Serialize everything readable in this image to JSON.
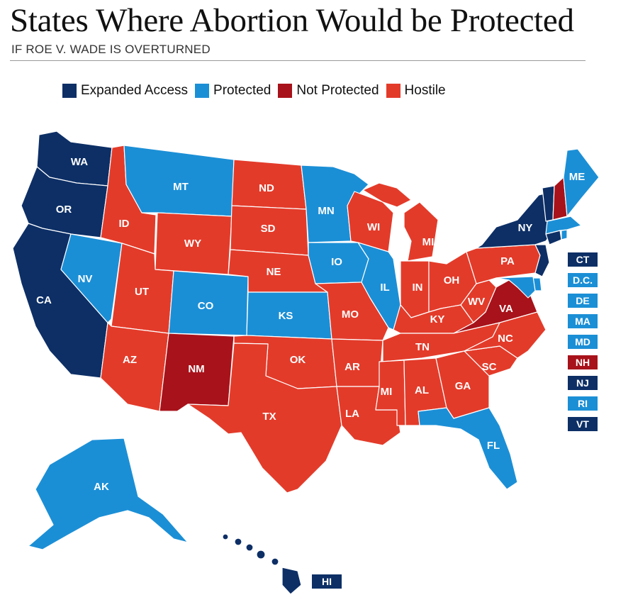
{
  "title": "States Where Abortion Would be Protected",
  "subtitle": "IF ROE V. WADE IS OVERTURNED",
  "colors": {
    "expanded": "#0d2f66",
    "protected": "#1b8fd6",
    "not_protected": "#a8121a",
    "hostile": "#e33b2a"
  },
  "legend": [
    {
      "label": "Expanded Access",
      "category": "expanded"
    },
    {
      "label": "Protected",
      "category": "protected"
    },
    {
      "label": "Not Protected",
      "category": "not_protected"
    },
    {
      "label": "Hostile",
      "category": "hostile"
    }
  ],
  "states": {
    "WA": "WA",
    "OR": "OR",
    "CA": "CA",
    "NV": "NV",
    "ID": "ID",
    "MT": "MT",
    "WY": "WY",
    "UT": "UT",
    "AZ": "AZ",
    "CO": "CO",
    "NM": "NM",
    "ND": "ND",
    "SD": "SD",
    "NE": "NE",
    "KS": "KS",
    "OK": "OK",
    "TX": "TX",
    "MN": "MN",
    "IO": "IO",
    "MO": "MO",
    "AR": "AR",
    "LA": "LA",
    "WI": "WI",
    "IL": "IL",
    "MI_N": "MI",
    "MI_S": "MI",
    "IN": "IN",
    "OH": "OH",
    "KY": "KY",
    "TN": "TN",
    "AL": "AL",
    "GA": "GA",
    "FL": "FL",
    "SC": "SC",
    "NC": "NC",
    "VA": "VA",
    "WV": "WV",
    "PA": "PA",
    "NY": "NY",
    "ME": "ME",
    "AK": "AK",
    "HI": "HI"
  },
  "small_states": [
    {
      "label": "CT",
      "category": "expanded"
    },
    {
      "label": "D.C.",
      "category": "protected"
    },
    {
      "label": "DE",
      "category": "protected"
    },
    {
      "label": "MA",
      "category": "protected"
    },
    {
      "label": "MD",
      "category": "protected"
    },
    {
      "label": "NH",
      "category": "not_protected"
    },
    {
      "label": "NJ",
      "category": "expanded"
    },
    {
      "label": "RI",
      "category": "protected"
    },
    {
      "label": "VT",
      "category": "expanded"
    }
  ]
}
